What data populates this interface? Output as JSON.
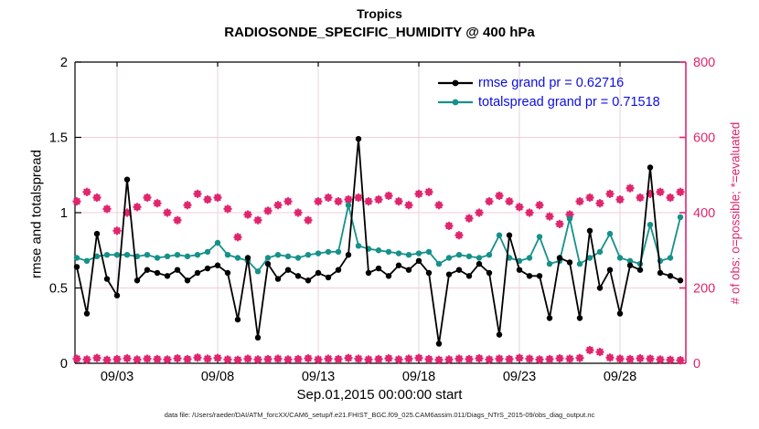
{
  "window": {
    "background": "#ffffff"
  },
  "colors": {
    "rmse_series": "#000000",
    "totalspread_series": "#15918a",
    "obs_markers": "#e0256e",
    "right_axis": "#e0256e",
    "legend_text": "#0d0de0",
    "grid_horizontal": "#f6ccd9",
    "grid_vertical": "#e3d6db",
    "axis_box": "#000000"
  },
  "chart_data": {
    "type": "line",
    "title": "Tropics",
    "subtitle": "RADIOSONDE_SPECIFIC_HUMIDITY @ 400 hPa",
    "xlabel": "Sep.01,2015 00:00:00 start",
    "ylabel_left": "rmse and totalspread",
    "ylabel_right": "# of obs: o=possible; *=evaluated",
    "footer": "data file: /Users/raeder/DAI/ATM_forcXX/CAM6_setup/f.e21.FHIST_BGC.f09_025.CAM6assim.011/Diags_NTrS_2015-09/obs_diag_output.nc",
    "x_start_day": 1,
    "x_step_days": 0.5,
    "n_points": 61,
    "xlim_days": [
      0.9,
      31.3
    ],
    "ylim_left": [
      0,
      2
    ],
    "yticks_left": [
      {
        "v": 0,
        "label": "0"
      },
      {
        "v": 0.5,
        "label": "0.5"
      },
      {
        "v": 1,
        "label": "1"
      },
      {
        "v": 1.5,
        "label": "1.5"
      },
      {
        "v": 2,
        "label": "2"
      }
    ],
    "ylim_right": [
      0,
      800
    ],
    "yticks_right": [
      {
        "v": 0,
        "label": "0"
      },
      {
        "v": 200,
        "label": "200"
      },
      {
        "v": 400,
        "label": "400"
      },
      {
        "v": 600,
        "label": "600"
      },
      {
        "v": 800,
        "label": "800"
      }
    ],
    "xticks": [
      {
        "day": 3,
        "label": "09/03"
      },
      {
        "day": 8,
        "label": "09/08"
      },
      {
        "day": 13,
        "label": "09/13"
      },
      {
        "day": 18,
        "label": "09/18"
      },
      {
        "day": 23,
        "label": "09/23"
      },
      {
        "day": 28,
        "label": "09/28"
      }
    ],
    "grid": true,
    "legend_position": "upper-right-inside",
    "series": [
      {
        "name": "rmse",
        "legend": "rmse grand pr = 0.62716",
        "color": "#000000",
        "axis": "left",
        "style": "line-dot",
        "values": [
          0.64,
          0.33,
          0.86,
          0.56,
          0.45,
          1.22,
          0.55,
          0.62,
          0.6,
          0.58,
          0.62,
          0.55,
          0.6,
          0.63,
          0.65,
          0.6,
          0.29,
          0.7,
          0.17,
          0.66,
          0.56,
          0.62,
          0.58,
          0.55,
          0.6,
          0.57,
          0.62,
          0.72,
          1.49,
          0.6,
          0.63,
          0.58,
          0.65,
          0.62,
          0.68,
          0.6,
          0.13,
          0.59,
          0.62,
          0.58,
          0.66,
          0.6,
          0.19,
          0.85,
          0.62,
          0.58,
          0.58,
          0.3,
          0.7,
          0.67,
          0.3,
          0.88,
          0.5,
          0.62,
          0.33,
          0.65,
          0.62,
          1.3,
          0.6,
          0.58,
          0.55
        ]
      },
      {
        "name": "totalspread",
        "legend": "totalspread grand pr = 0.71518",
        "color": "#15918a",
        "axis": "left",
        "style": "line-dot",
        "values": [
          0.7,
          0.68,
          0.71,
          0.72,
          0.72,
          0.72,
          0.71,
          0.72,
          0.7,
          0.71,
          0.72,
          0.71,
          0.72,
          0.74,
          0.8,
          0.72,
          0.7,
          0.68,
          0.61,
          0.7,
          0.72,
          0.71,
          0.7,
          0.72,
          0.73,
          0.74,
          0.74,
          1.05,
          0.78,
          0.76,
          0.75,
          0.74,
          0.73,
          0.72,
          0.73,
          0.74,
          0.66,
          0.7,
          0.72,
          0.71,
          0.7,
          0.72,
          0.85,
          0.7,
          0.68,
          0.7,
          0.84,
          0.66,
          0.68,
          0.96,
          0.66,
          0.7,
          0.74,
          0.86,
          0.7,
          0.68,
          0.66,
          0.92,
          0.68,
          0.7,
          0.97
        ]
      },
      {
        "name": "n_possible",
        "legend": null,
        "color": "#e0256e",
        "axis": "right",
        "style": "obs-marker",
        "values": [
          430,
          455,
          440,
          410,
          352,
          400,
          415,
          440,
          425,
          400,
          380,
          420,
          450,
          435,
          440,
          410,
          335,
          395,
          380,
          405,
          420,
          430,
          400,
          380,
          430,
          440,
          430,
          435,
          440,
          430,
          435,
          445,
          430,
          420,
          450,
          455,
          420,
          365,
          340,
          385,
          400,
          430,
          445,
          430,
          415,
          400,
          420,
          390,
          370,
          395,
          430,
          440,
          425,
          450,
          435,
          465,
          440,
          450,
          455,
          440,
          455
        ]
      },
      {
        "name": "n_evaluated",
        "legend": null,
        "color": "#e0256e",
        "axis": "right",
        "style": "obs-marker",
        "values": [
          12,
          10,
          14,
          9,
          11,
          13,
          10,
          12,
          11,
          10,
          13,
          11,
          15,
          12,
          14,
          10,
          9,
          12,
          10,
          11,
          12,
          10,
          11,
          13,
          10,
          12,
          11,
          14,
          12,
          10,
          11,
          13,
          10,
          12,
          14,
          11,
          9,
          10,
          12,
          11,
          13,
          10,
          12,
          11,
          14,
          12,
          10,
          11,
          13,
          12,
          14,
          35,
          30,
          15,
          12,
          11,
          13,
          12,
          10,
          9,
          8
        ]
      }
    ]
  }
}
